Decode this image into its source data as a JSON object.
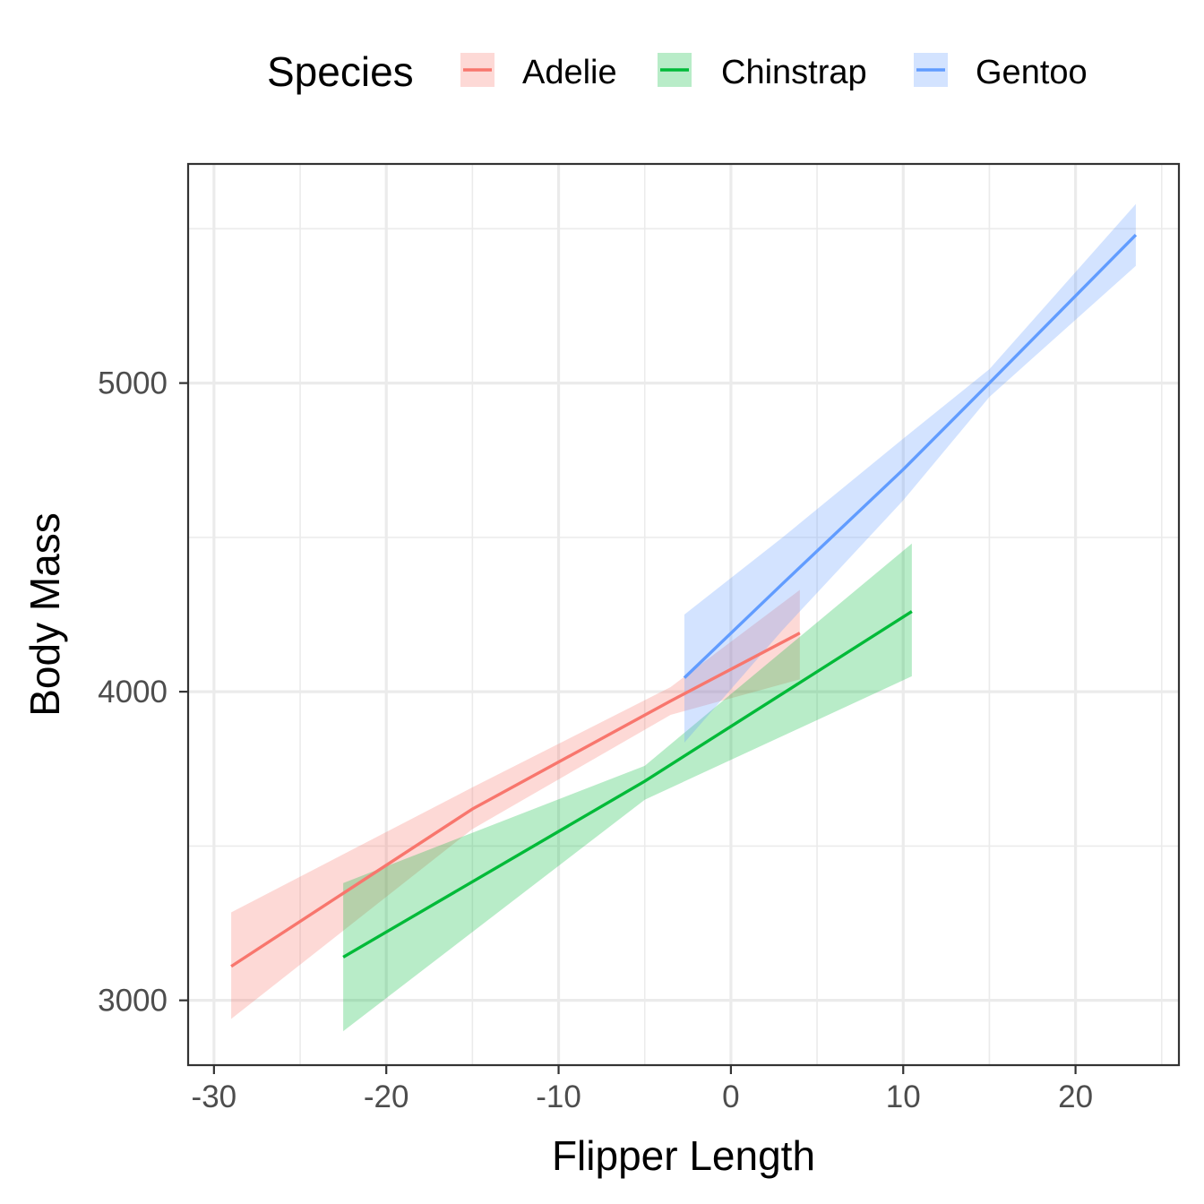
{
  "chart_data": {
    "type": "line",
    "xlabel": "Flipper Length",
    "ylabel": "Body Mass",
    "xlim": [
      -31.5,
      26
    ],
    "ylim": [
      2790,
      5710
    ],
    "x_ticks": [
      -30,
      -20,
      -10,
      0,
      10,
      20
    ],
    "x_tick_labels": [
      "-30",
      "-20",
      "-10",
      "0",
      "10",
      "20"
    ],
    "y_ticks": [
      3000,
      4000,
      5000
    ],
    "y_tick_labels": [
      "3000",
      "4000",
      "5000"
    ],
    "grid": true,
    "legend": {
      "title": "Species",
      "position": "top",
      "entries": [
        "Adelie",
        "Chinstrap",
        "Gentoo"
      ]
    },
    "series": [
      {
        "name": "Adelie",
        "color": "#F8766D",
        "x": [
          -29,
          -15,
          -3.5,
          4
        ],
        "y": [
          3110,
          3620,
          3970,
          4190
        ],
        "ci_upper": [
          3285,
          3690,
          4015,
          4330
        ],
        "ci_lower": [
          2940,
          3555,
          3925,
          4040
        ]
      },
      {
        "name": "Chinstrap",
        "color": "#00BA38",
        "x": [
          -22.5,
          -5,
          10.5
        ],
        "y": [
          3140,
          3710,
          4260
        ],
        "ci_upper": [
          3380,
          3760,
          4480
        ],
        "ci_lower": [
          2900,
          3650,
          4050
        ]
      },
      {
        "name": "Gentoo",
        "color": "#619CFF",
        "x": [
          -2.7,
          3,
          10,
          15,
          23.5
        ],
        "y": [
          4045,
          4350,
          4720,
          5000,
          5480
        ],
        "ci_upper": [
          4250,
          4500,
          4820,
          5045,
          5580
        ],
        "ci_lower": [
          3835,
          4200,
          4620,
          4955,
          5380
        ]
      }
    ]
  }
}
